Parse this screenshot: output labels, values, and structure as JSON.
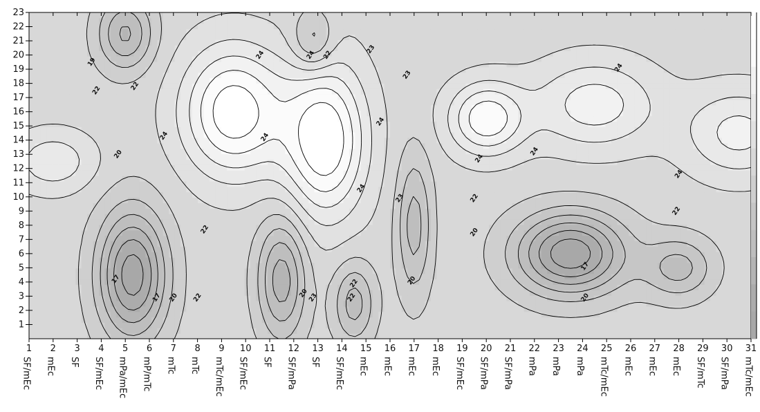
{
  "chart_data": {
    "type": "heatmap",
    "subtype": "contour",
    "title": "",
    "xlabel": "",
    "ylabel": "",
    "x_ticks": [
      1,
      2,
      3,
      4,
      5,
      6,
      7,
      8,
      9,
      10,
      11,
      12,
      13,
      14,
      15,
      16,
      17,
      18,
      19,
      20,
      21,
      22,
      23,
      24,
      25,
      26,
      27,
      28,
      29,
      30,
      31
    ],
    "x_categories": [
      "SF/mEc",
      "mEc",
      "SF",
      "SF/mEc",
      "mPa/mEc",
      "mP/mTc",
      "mTc",
      "mTc",
      "mTc/mEc",
      "SF/mEc",
      "SF",
      "SF/mPa",
      "SF",
      "SF/mEc",
      "mEc",
      "mEc",
      "mEc",
      "mEc",
      "SF/mEc",
      "SF/mPa",
      "SF/mPa",
      "mPa",
      "mPa",
      "mPa",
      "mTc/mEc",
      "mEc",
      "mEc",
      "mEc",
      "SF/mTc",
      "SF/mPa",
      "mTc/mEc"
    ],
    "y_ticks": [
      1,
      2,
      3,
      4,
      5,
      6,
      7,
      8,
      9,
      10,
      11,
      12,
      13,
      14,
      15,
      16,
      17,
      18,
      19,
      20,
      21,
      22,
      23
    ],
    "xlim": [
      1,
      31
    ],
    "ylim": [
      0,
      23
    ],
    "contour_levels": [
      17,
      18,
      19,
      20,
      21,
      22,
      23,
      24,
      25,
      26,
      27
    ],
    "fill_light": "#ffffff",
    "fill_dark": "#a8a8a8",
    "line_color": "#000000",
    "field_centers": [
      {
        "x": 9.5,
        "y": 16.0,
        "value": 27.8,
        "sx": 1.5,
        "sy": 3.2
      },
      {
        "x": 13.3,
        "y": 14.0,
        "value": 28.0,
        "sx": 1.2,
        "sy": 3.8
      },
      {
        "x": 20.0,
        "y": 15.5,
        "value": 26.8,
        "sx": 1.1,
        "sy": 1.8
      },
      {
        "x": 24.5,
        "y": 16.5,
        "value": 25.6,
        "sx": 1.8,
        "sy": 2.2
      },
      {
        "x": 30.5,
        "y": 14.5,
        "value": 25.4,
        "sx": 1.6,
        "sy": 2.2
      },
      {
        "x": 2.0,
        "y": 12.5,
        "value": 24.8,
        "sx": 1.2,
        "sy": 1.5
      },
      {
        "x": 5.3,
        "y": 4.5,
        "value": 16.4,
        "sx": 1.0,
        "sy": 3.2
      },
      {
        "x": 11.5,
        "y": 4.2,
        "value": 18.4,
        "sx": 0.7,
        "sy": 3.0
      },
      {
        "x": 23.5,
        "y": 6.0,
        "value": 16.2,
        "sx": 1.6,
        "sy": 2.0
      },
      {
        "x": 17.0,
        "y": 8.0,
        "value": 19.5,
        "sx": 0.5,
        "sy": 3.5
      },
      {
        "x": 5.0,
        "y": 21.5,
        "value": 18.8,
        "sx": 0.8,
        "sy": 1.8
      },
      {
        "x": 12.8,
        "y": 21.0,
        "value": 20.0,
        "sx": 0.6,
        "sy": 1.5
      },
      {
        "x": 14.5,
        "y": 2.5,
        "value": 19.5,
        "sx": 0.6,
        "sy": 2.0
      },
      {
        "x": 28.0,
        "y": 5.0,
        "value": 19.6,
        "sx": 1.0,
        "sy": 1.5
      }
    ],
    "contour_labels": [
      {
        "text": "19",
        "x": 3.6,
        "y": 19.5
      },
      {
        "text": "22",
        "x": 3.8,
        "y": 17.5
      },
      {
        "text": "22",
        "x": 5.4,
        "y": 17.8
      },
      {
        "text": "24",
        "x": 6.6,
        "y": 14.3
      },
      {
        "text": "20",
        "x": 4.7,
        "y": 13.0
      },
      {
        "text": "17",
        "x": 4.6,
        "y": 4.2
      },
      {
        "text": "17",
        "x": 6.3,
        "y": 2.9
      },
      {
        "text": "20",
        "x": 7.0,
        "y": 2.9
      },
      {
        "text": "22",
        "x": 8.0,
        "y": 2.9
      },
      {
        "text": "22",
        "x": 8.3,
        "y": 7.7
      },
      {
        "text": "24",
        "x": 10.8,
        "y": 14.2
      },
      {
        "text": "24",
        "x": 10.6,
        "y": 20.0
      },
      {
        "text": "24",
        "x": 12.7,
        "y": 20.0
      },
      {
        "text": "22",
        "x": 13.4,
        "y": 20.0
      },
      {
        "text": "20",
        "x": 12.4,
        "y": 3.2
      },
      {
        "text": "23",
        "x": 12.8,
        "y": 2.9
      },
      {
        "text": "22",
        "x": 14.5,
        "y": 3.9
      },
      {
        "text": "22",
        "x": 14.4,
        "y": 2.9
      },
      {
        "text": "24",
        "x": 15.6,
        "y": 15.3
      },
      {
        "text": "24",
        "x": 14.8,
        "y": 10.6
      },
      {
        "text": "23",
        "x": 15.2,
        "y": 20.4
      },
      {
        "text": "23",
        "x": 16.7,
        "y": 18.6
      },
      {
        "text": "23",
        "x": 16.4,
        "y": 9.9
      },
      {
        "text": "20",
        "x": 16.9,
        "y": 4.1
      },
      {
        "text": "24",
        "x": 19.7,
        "y": 12.7
      },
      {
        "text": "22",
        "x": 19.5,
        "y": 9.9
      },
      {
        "text": "20",
        "x": 19.5,
        "y": 7.5
      },
      {
        "text": "24",
        "x": 22.0,
        "y": 13.2
      },
      {
        "text": "24",
        "x": 25.5,
        "y": 19.1
      },
      {
        "text": "17",
        "x": 24.1,
        "y": 5.1
      },
      {
        "text": "20",
        "x": 24.1,
        "y": 2.9
      },
      {
        "text": "24",
        "x": 28.0,
        "y": 11.6
      },
      {
        "text": "22",
        "x": 27.9,
        "y": 9.0
      }
    ]
  }
}
